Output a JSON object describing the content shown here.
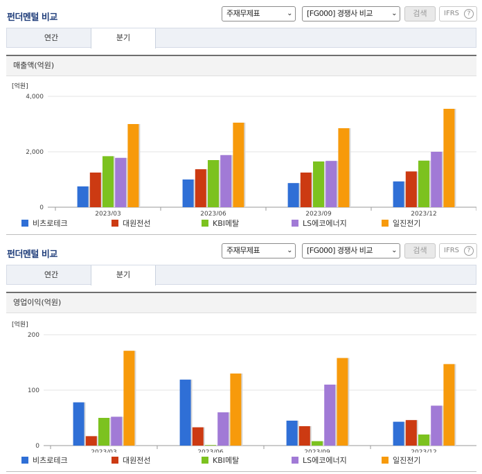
{
  "sections": [
    {
      "title": "펀더멘털 비교",
      "select_statement": "주재무제표",
      "select_compare": "[FG000] 경쟁사 비교",
      "search_label": "검색",
      "ifrs_label": "IFRS",
      "tabs": [
        "연간",
        "분기"
      ],
      "active_tab": 1,
      "metric_title": "매출액(억원)",
      "unit": "[억원]"
    },
    {
      "title": "펀더멘털 비교",
      "select_statement": "주재무제표",
      "select_compare": "[FG000] 경쟁사 비교",
      "search_label": "검색",
      "ifrs_label": "IFRS",
      "tabs": [
        "연간",
        "분기"
      ],
      "active_tab": 1,
      "metric_title": "영업이익(억원)",
      "unit": "[억원]"
    }
  ],
  "colors": {
    "비츠로테크": "#2f6fd6",
    "대원전선": "#cc3a12",
    "KBI메탈": "#7cc21f",
    "LS에코에너지": "#a17ad6",
    "일진전기": "#f79a0b",
    "title": "#1f3d7a"
  },
  "chart_data": [
    {
      "type": "bar",
      "title": "매출액(억원)",
      "ylabel": "[억원]",
      "categories": [
        "2023/03",
        "2023/06",
        "2023/09",
        "2023/12"
      ],
      "ylim": [
        0,
        4000
      ],
      "yticks": [
        0,
        2000,
        4000
      ],
      "ytick_labels": [
        "0",
        "2,000",
        "4,000"
      ],
      "series": [
        {
          "name": "비츠로테크",
          "values": [
            750,
            1000,
            870,
            930
          ]
        },
        {
          "name": "대원전선",
          "values": [
            1250,
            1370,
            1250,
            1290
          ]
        },
        {
          "name": "KBI메탈",
          "values": [
            1840,
            1700,
            1650,
            1680
          ]
        },
        {
          "name": "LS에코에너지",
          "values": [
            1780,
            1880,
            1670,
            2000
          ]
        },
        {
          "name": "일진전기",
          "values": [
            3000,
            3050,
            2850,
            3550
          ]
        }
      ],
      "legend": "bottom"
    },
    {
      "type": "bar",
      "title": "영업이익(억원)",
      "ylabel": "[억원]",
      "categories": [
        "2023/03",
        "2023/06",
        "2023/09",
        "2023/12"
      ],
      "ylim": [
        0,
        200
      ],
      "yticks": [
        0,
        100,
        200
      ],
      "ytick_labels": [
        "0",
        "100",
        "200"
      ],
      "series": [
        {
          "name": "비츠로테크",
          "values": [
            78,
            119,
            45,
            43
          ]
        },
        {
          "name": "대원전선",
          "values": [
            17,
            33,
            35,
            46
          ]
        },
        {
          "name": "KBI메탈",
          "values": [
            50,
            1,
            8,
            20
          ]
        },
        {
          "name": "LS에코에너지",
          "values": [
            52,
            60,
            110,
            72
          ]
        },
        {
          "name": "일진전기",
          "values": [
            171,
            130,
            158,
            147
          ]
        }
      ],
      "legend": "bottom"
    }
  ]
}
